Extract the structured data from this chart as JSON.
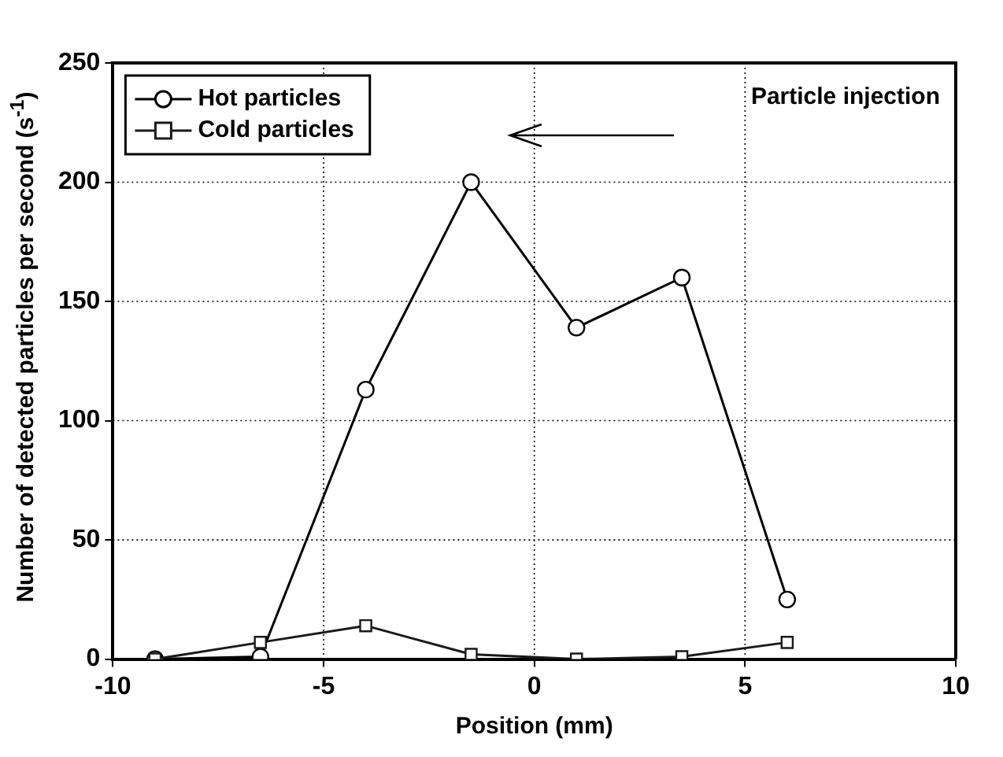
{
  "chart_data": {
    "type": "line",
    "xlabel": "Position (mm)",
    "ylabel": "Number of detected particles per second (s$^{-1}$)",
    "annotations": [
      "Particle injection"
    ],
    "xlim": [
      -10,
      10
    ],
    "xticks": [
      -10,
      -5,
      0,
      5,
      10
    ],
    "ylim": [
      0,
      250
    ],
    "yticks": [
      0,
      50,
      100,
      150,
      200,
      250
    ],
    "grid": true,
    "legend": "top left",
    "line_style": "solid",
    "series": [
      {
        "name": "Hot particles",
        "color": "#000000",
        "marker": "circle",
        "x": [
          -9,
          -6.5,
          -4,
          -1.5,
          1,
          3.5,
          6
        ],
        "values": [
          0,
          1,
          113,
          200,
          139,
          160,
          25
        ]
      },
      {
        "name": "Cold particles",
        "color": "#1a1a1a",
        "marker": "square",
        "x": [
          -9,
          -6.5,
          -4,
          -1.5,
          1,
          3.5,
          6
        ],
        "values": [
          0,
          7,
          14,
          2,
          0,
          1,
          7
        ]
      }
    ]
  }
}
